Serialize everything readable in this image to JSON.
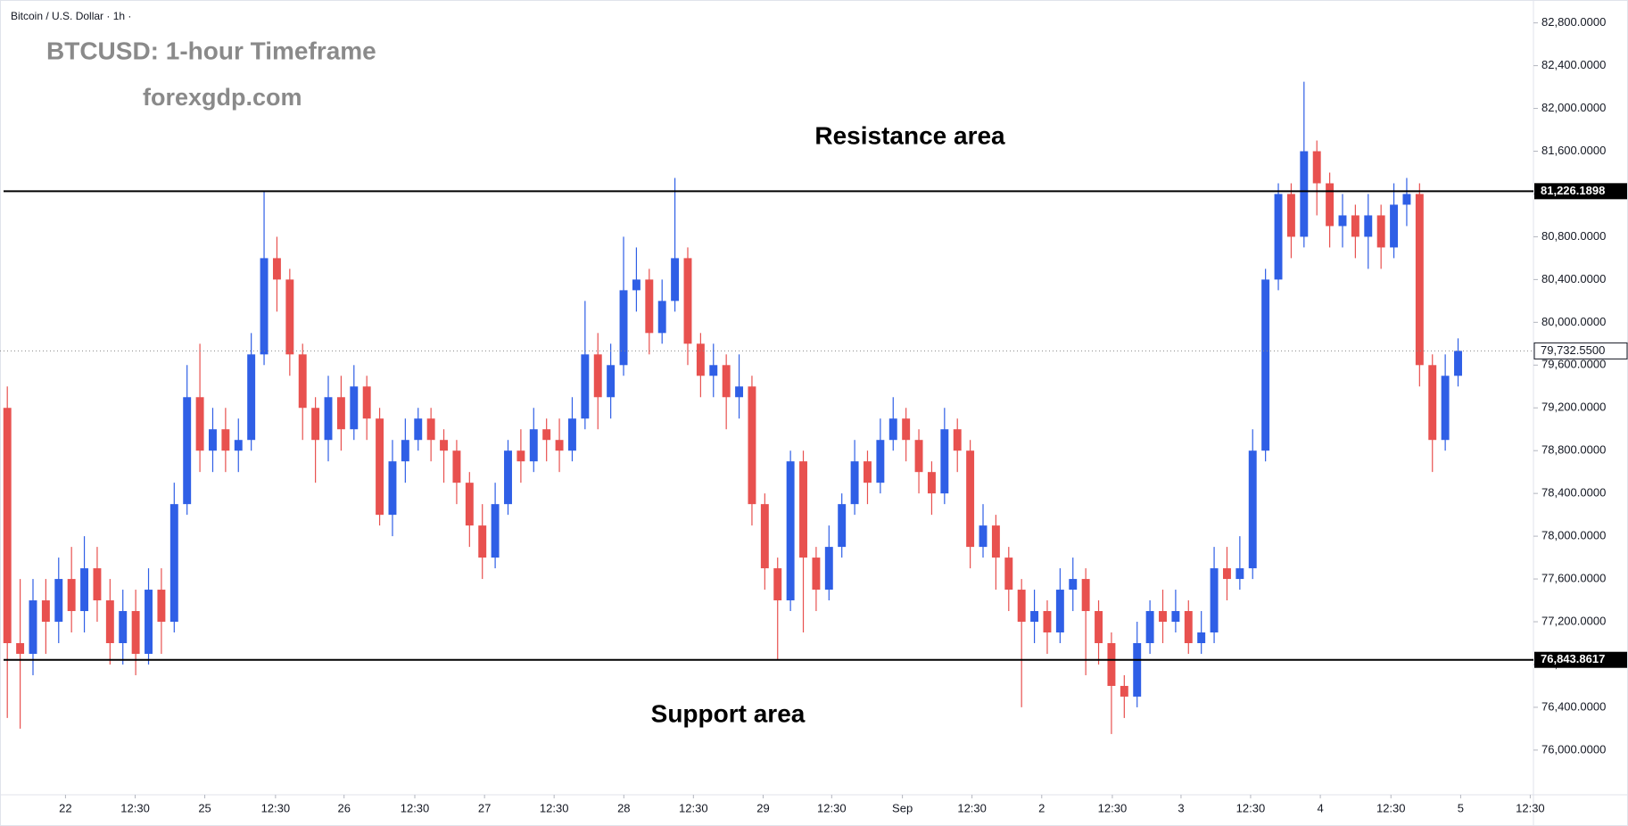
{
  "chart_data": {
    "type": "candlestick",
    "header": "Bitcoin / U.S. Dollar · 1h ·",
    "title": "BTCUSD: 1-hour Timeframe",
    "subtitle": "forexgdp.com",
    "annotations": [
      "Resistance area",
      "Support area"
    ],
    "up_color": "#2f5fe6",
    "down_color": "#e8514f",
    "open": [
      79200,
      77000,
      76900,
      77400,
      77200,
      77600,
      77300,
      77700,
      77400,
      77000,
      77300,
      76900,
      77500,
      77200,
      78300,
      79300,
      78800,
      79000,
      78800,
      78900,
      79700,
      80600,
      80400,
      79700,
      79200,
      78900,
      79300,
      79000,
      79400,
      79100,
      78200,
      78700,
      78900,
      79100,
      78900,
      78800,
      78500,
      78100,
      77800,
      78300,
      78800,
      78700,
      79000,
      78900,
      78800,
      79100,
      79700,
      79300,
      79600,
      80300,
      80400,
      79900,
      80200,
      80600,
      79800,
      79500,
      79600,
      79300,
      79400,
      78300,
      77700,
      77400,
      78700,
      77800,
      77500,
      77900,
      78300,
      78700,
      78500,
      78900,
      79100,
      78900,
      78600,
      78400,
      79000,
      78800,
      77900,
      78100,
      77800,
      77500,
      77200,
      77300,
      77100,
      77500,
      77600,
      77300,
      77000,
      76600,
      76500,
      77000,
      77300,
      77200,
      77300,
      77000,
      77100,
      77700,
      77600,
      77700,
      78800,
      80400,
      81200,
      80800,
      81600,
      81300,
      80900,
      81000,
      80800,
      81000,
      80700,
      81100,
      81200,
      79600,
      78900,
      79500
    ],
    "high": [
      79400,
      77600,
      77600,
      77600,
      77800,
      77900,
      78000,
      77900,
      77600,
      77500,
      77500,
      77700,
      77700,
      78500,
      79600,
      79800,
      79200,
      79200,
      79100,
      79900,
      81226,
      80800,
      80500,
      79800,
      79300,
      79500,
      79500,
      79600,
      79500,
      79200,
      78900,
      79100,
      79200,
      79200,
      79000,
      78900,
      78600,
      78300,
      78500,
      78900,
      79000,
      79200,
      79100,
      79100,
      79300,
      80200,
      79900,
      79800,
      80800,
      80700,
      80500,
      80400,
      81350,
      80700,
      79900,
      79800,
      79700,
      79700,
      79500,
      78400,
      77800,
      78800,
      78800,
      77900,
      78100,
      78400,
      78900,
      78800,
      79100,
      79300,
      79200,
      79000,
      78700,
      79200,
      79100,
      78900,
      78300,
      78200,
      77900,
      77600,
      77500,
      77400,
      77700,
      77800,
      77700,
      77400,
      77100,
      76700,
      77200,
      77400,
      77500,
      77500,
      77400,
      77300,
      77900,
      77900,
      78000,
      79000,
      80500,
      81300,
      81300,
      82250,
      81700,
      81400,
      81200,
      81100,
      81200,
      81100,
      81300,
      81350,
      81300,
      79700,
      79700,
      79850
    ],
    "low": [
      76300,
      76200,
      76700,
      76900,
      77000,
      77100,
      77100,
      77200,
      76800,
      76800,
      76700,
      76800,
      76900,
      77100,
      78200,
      78600,
      78600,
      78600,
      78600,
      78800,
      79600,
      80100,
      79500,
      78900,
      78500,
      78700,
      78800,
      78900,
      78900,
      78100,
      78000,
      78500,
      78800,
      78700,
      78500,
      78300,
      77900,
      77600,
      77700,
      78200,
      78500,
      78600,
      78700,
      78600,
      78700,
      79000,
      79000,
      79100,
      79500,
      80100,
      79700,
      79800,
      80100,
      79600,
      79300,
      79300,
      79000,
      79100,
      78100,
      77500,
      76850,
      77300,
      77100,
      77300,
      77400,
      77800,
      78200,
      78300,
      78400,
      78800,
      78700,
      78400,
      78200,
      78300,
      78600,
      77700,
      77800,
      77500,
      77300,
      76400,
      77000,
      76900,
      77000,
      77300,
      76700,
      76800,
      76150,
      76300,
      76400,
      76900,
      77000,
      77100,
      76900,
      76900,
      77000,
      77400,
      77500,
      77600,
      78700,
      80300,
      80600,
      80700,
      81000,
      80700,
      80700,
      80600,
      80500,
      80500,
      80600,
      80900,
      79400,
      78600,
      78800,
      79400
    ],
    "close": [
      77000,
      76900,
      77400,
      77200,
      77600,
      77300,
      77700,
      77400,
      77000,
      77300,
      76900,
      77500,
      77200,
      78300,
      79300,
      78800,
      79000,
      78800,
      78900,
      79700,
      80600,
      80400,
      79700,
      79200,
      78900,
      79300,
      79000,
      79400,
      79100,
      78200,
      78700,
      78900,
      79100,
      78900,
      78800,
      78500,
      78100,
      77800,
      78300,
      78800,
      78700,
      79000,
      78900,
      78800,
      79100,
      79700,
      79300,
      79600,
      80300,
      80400,
      79900,
      80200,
      80600,
      79800,
      79500,
      79600,
      79300,
      79400,
      78300,
      77700,
      77400,
      78700,
      77800,
      77500,
      77900,
      78300,
      78700,
      78500,
      78900,
      79100,
      78900,
      78600,
      78400,
      79000,
      78800,
      77900,
      78100,
      77800,
      77500,
      77200,
      77300,
      77100,
      77500,
      77600,
      77300,
      77000,
      76600,
      76500,
      77000,
      77300,
      77200,
      77300,
      77000,
      77100,
      77700,
      77600,
      77700,
      78800,
      80400,
      81200,
      80800,
      81600,
      81300,
      80900,
      81000,
      80800,
      81000,
      80700,
      81100,
      81200,
      79600,
      78900,
      79500,
      79732.55
    ],
    "hlines": [
      {
        "value": 81226.1898,
        "label": "81,226.1898"
      },
      {
        "value": 76843.8617,
        "label": "76,843.8617"
      }
    ],
    "last_price": {
      "value": 79732.55,
      "label": "79,732.5500"
    },
    "xlim": [
      -0.57,
      118.87
    ],
    "xticks": [
      {
        "value": 4.53,
        "label": "22"
      },
      {
        "value": 9.96,
        "label": "12:30"
      },
      {
        "value": 15.38,
        "label": "25"
      },
      {
        "value": 20.89,
        "label": "12:30"
      },
      {
        "value": 26.23,
        "label": "26"
      },
      {
        "value": 31.74,
        "label": "12:30"
      },
      {
        "value": 37.17,
        "label": "27"
      },
      {
        "value": 42.59,
        "label": "12:30"
      },
      {
        "value": 48.02,
        "label": "28"
      },
      {
        "value": 53.44,
        "label": "12:30"
      },
      {
        "value": 58.87,
        "label": "29"
      },
      {
        "value": 64.21,
        "label": "12:30"
      },
      {
        "value": 69.72,
        "label": "Sep"
      },
      {
        "value": 75.14,
        "label": "12:30"
      },
      {
        "value": 80.57,
        "label": "2"
      },
      {
        "value": 86.07,
        "label": "12:30"
      },
      {
        "value": 91.42,
        "label": "3"
      },
      {
        "value": 96.84,
        "label": "12:30"
      },
      {
        "value": 102.27,
        "label": "4"
      },
      {
        "value": 107.77,
        "label": "12:30"
      },
      {
        "value": 113.2,
        "label": "5"
      },
      {
        "value": 118.62,
        "label": "12:30"
      }
    ],
    "ylim": [
      75582,
      83014
    ],
    "yticks": [
      {
        "value": 76000,
        "label": "76,000.0000"
      },
      {
        "value": 76400,
        "label": "76,400.0000"
      },
      {
        "value": 76800,
        "label": "76,800.0000"
      },
      {
        "value": 77200,
        "label": "77,200.0000"
      },
      {
        "value": 77600,
        "label": "77,600.0000"
      },
      {
        "value": 78000,
        "label": "78,000.0000"
      },
      {
        "value": 78400,
        "label": "78,400.0000"
      },
      {
        "value": 78800,
        "label": "78,800.0000"
      },
      {
        "value": 79200,
        "label": "79,200.0000"
      },
      {
        "value": 79600,
        "label": "79,600.0000"
      },
      {
        "value": 80000,
        "label": "80,000.0000"
      },
      {
        "value": 80400,
        "label": "80,400.0000"
      },
      {
        "value": 80800,
        "label": "80,800.0000"
      },
      {
        "value": 81200,
        "label": "81,200.0000"
      },
      {
        "value": 81600,
        "label": "81,600.0000"
      },
      {
        "value": 82000,
        "label": "82,000.0000"
      },
      {
        "value": 82400,
        "label": "82,400.0000"
      },
      {
        "value": 82800,
        "label": "82,800.0000"
      }
    ],
    "grid": false
  }
}
